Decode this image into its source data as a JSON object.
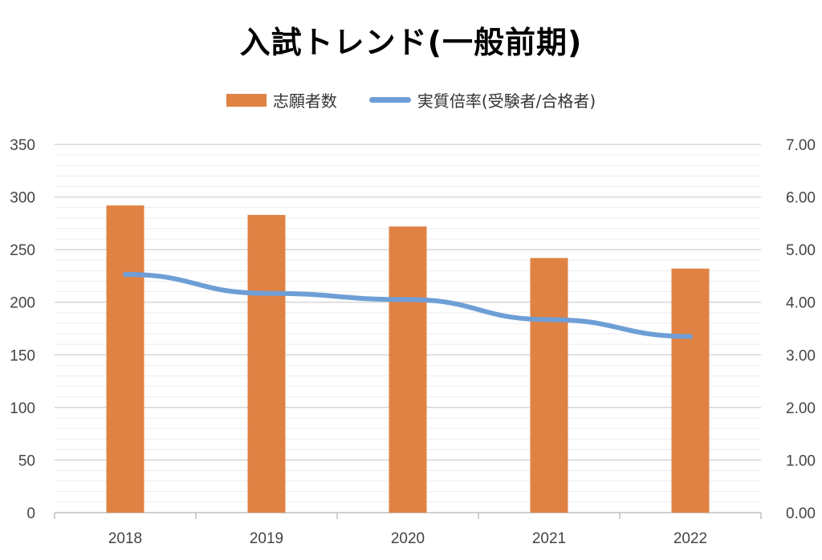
{
  "colors": {
    "bar": "#E08244",
    "line": "#6E9ED6",
    "grid": "#D9D9D9",
    "axis": "#BFBFBF"
  },
  "chart_data": {
    "type": "bar+line",
    "title": "入試トレンド(一般前期)",
    "categories": [
      "2018",
      "2019",
      "2020",
      "2021",
      "2022"
    ],
    "series": [
      {
        "name": "志願者数",
        "type": "bar",
        "axis": "left",
        "values": [
          292,
          283,
          272,
          242,
          232
        ]
      },
      {
        "name": "実質倍率(受験者/合格者)",
        "type": "line",
        "axis": "right",
        "values": [
          4.53,
          4.17,
          4.05,
          3.67,
          3.35
        ]
      }
    ],
    "y_left": {
      "min": 0,
      "max": 350,
      "ticks": [
        "0",
        "50",
        "100",
        "150",
        "200",
        "250",
        "300",
        "350"
      ]
    },
    "y_right": {
      "min": 0,
      "max": 7,
      "ticks": [
        "0.00",
        "1.00",
        "2.00",
        "3.00",
        "4.00",
        "5.00",
        "6.00",
        "7.00"
      ]
    },
    "legend_position": "top",
    "grid": true
  }
}
